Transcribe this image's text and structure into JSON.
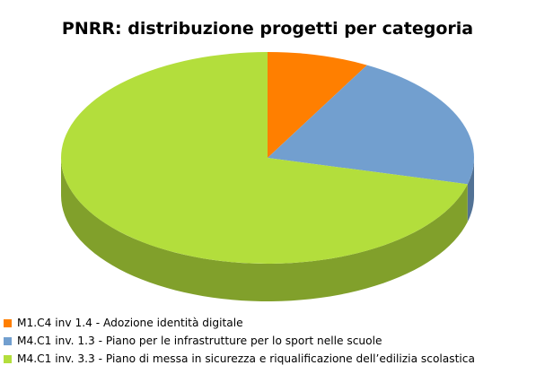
{
  "chart_data": {
    "type": "pie",
    "title": "PNRR: distribuzione progetti per categoria",
    "series": [
      {
        "name": "M1.C4 inv 1.4 - Adozione identità digitale",
        "value": 8,
        "color": "#ff7f00"
      },
      {
        "name": "M4.C1 inv. 1.3 - Piano per le infrastrutture per lo sport nelle scuole",
        "value": 21,
        "color": "#729fcf"
      },
      {
        "name": "M4.C1 inv. 3.3 - Piano di messa in sicurezza e riqualificazione dell’edilizia scolastica",
        "value": 71,
        "color": "#b3de3c"
      }
    ],
    "legend_position": "bottom-left",
    "style": "3d"
  }
}
